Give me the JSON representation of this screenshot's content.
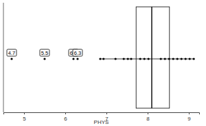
{
  "chart_data": {
    "type": "box",
    "orientation": "horizontal",
    "x_label": "PHYS",
    "xlim": [
      4.5,
      9.25
    ],
    "xticks": [
      5,
      6,
      7,
      8,
      9
    ],
    "tick_labels": "x",
    "color": "#000000",
    "box": {
      "q1": 7.72,
      "median": 8.1,
      "q3": 8.53,
      "whisker_low": 6.85,
      "whisker_high": 9.12
    },
    "values": [
      6.85,
      6.93,
      7.22,
      7.42,
      7.52,
      7.6,
      7.82,
      7.92,
      8.02,
      8.32,
      8.42,
      8.52,
      8.62,
      8.72,
      8.82,
      8.92,
      9.02,
      9.12
    ],
    "outliers": [
      4.7,
      5.5,
      6.2,
      6.3
    ],
    "data_labels": true
  }
}
